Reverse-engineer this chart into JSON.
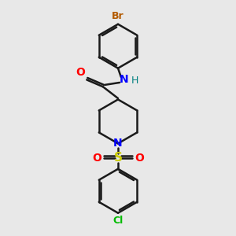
{
  "bg_color": "#eaeaea",
  "bond_color": "#1a1a1a",
  "bond_width": 1.8,
  "atom_colors": {
    "Br": "#b35a00",
    "N": "#0000ff",
    "H": "#008080",
    "O": "#ff0000",
    "S": "#cccc00",
    "Cl": "#00bb00",
    "C": "#1a1a1a"
  },
  "font_size": 9,
  "fig_bg": "#e8e8e8"
}
